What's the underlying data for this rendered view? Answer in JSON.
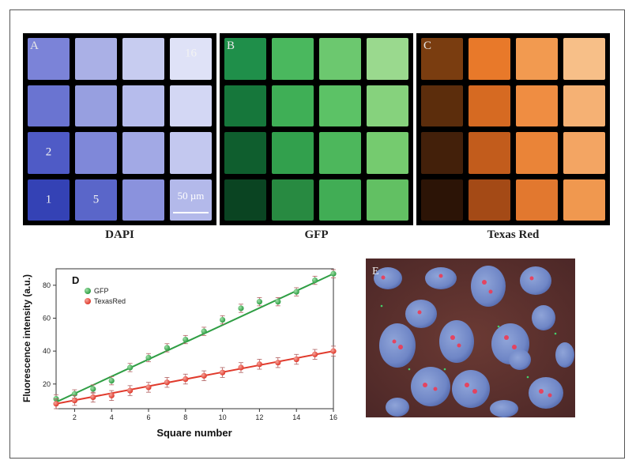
{
  "panels": [
    {
      "letter": "A",
      "caption": "DAPI",
      "labels": {
        "3": "16",
        "8": "2",
        "12": "1",
        "13": "5"
      },
      "scalebar": "50 µm",
      "colors": [
        "#7b83d8",
        "#aab0e6",
        "#c7ccf0",
        "#dfe2f7",
        "#6a74d1",
        "#979fe0",
        "#b6bcec",
        "#d3d7f4",
        "#4f5bc6",
        "#7f88d9",
        "#a2a9e5",
        "#c3c8ef",
        "#3442b5",
        "#5a66c9",
        "#8a92dd",
        "#b3b9ea"
      ]
    },
    {
      "letter": "B",
      "caption": "GFP",
      "colors": [
        "#1f8f4a",
        "#4ab85e",
        "#6cc86f",
        "#9ad98e",
        "#16773b",
        "#3faf56",
        "#5cc266",
        "#86d27d",
        "#0f5e2e",
        "#32a04d",
        "#4db75c",
        "#75cb6f",
        "#0a4422",
        "#288a41",
        "#41ad55",
        "#62c063"
      ]
    },
    {
      "letter": "C",
      "caption": "Texas Red",
      "colors": [
        "#7a3d10",
        "#e8792a",
        "#f29a50",
        "#f7bf88",
        "#5c2d0c",
        "#d66a22",
        "#ef8d42",
        "#f5b174",
        "#43200a",
        "#c25c1c",
        "#ea8438",
        "#f3a563",
        "#2c1406",
        "#a44a16",
        "#e2782f",
        "#f0984f"
      ]
    }
  ],
  "chart_data": {
    "type": "scatter",
    "panel_label": "D",
    "xlabel": "Square number",
    "ylabel": "Fluorescence intensity (a.u.)",
    "xlim": [
      1,
      16
    ],
    "ylim": [
      5,
      90
    ],
    "xticks": [
      2,
      4,
      6,
      8,
      10,
      12,
      14,
      16
    ],
    "yticks": [
      20,
      40,
      60,
      80
    ],
    "series": [
      {
        "name": "GFP",
        "color": "#2f9e44",
        "x": [
          1,
          2,
          3,
          4,
          5,
          6,
          7,
          8,
          9,
          10,
          11,
          12,
          13,
          14,
          15,
          16
        ],
        "y": [
          11,
          14,
          17,
          22,
          30,
          36,
          42,
          47,
          52,
          59,
          66,
          70,
          70,
          76,
          83,
          87
        ],
        "err": 2.5,
        "fit": [
          [
            1,
            9
          ],
          [
            16,
            87
          ]
        ]
      },
      {
        "name": "TexasRed",
        "color": "#e03a2c",
        "x": [
          1,
          2,
          3,
          4,
          5,
          6,
          7,
          8,
          9,
          10,
          11,
          12,
          13,
          14,
          15,
          16
        ],
        "y": [
          8,
          10,
          12,
          13,
          16,
          18,
          21,
          23,
          25,
          27,
          30,
          32,
          33,
          35,
          38,
          40
        ],
        "err": 3,
        "fit": [
          [
            1,
            8
          ],
          [
            16,
            40
          ]
        ]
      }
    ],
    "legend": "top-left"
  },
  "photo": {
    "letter": "E"
  }
}
